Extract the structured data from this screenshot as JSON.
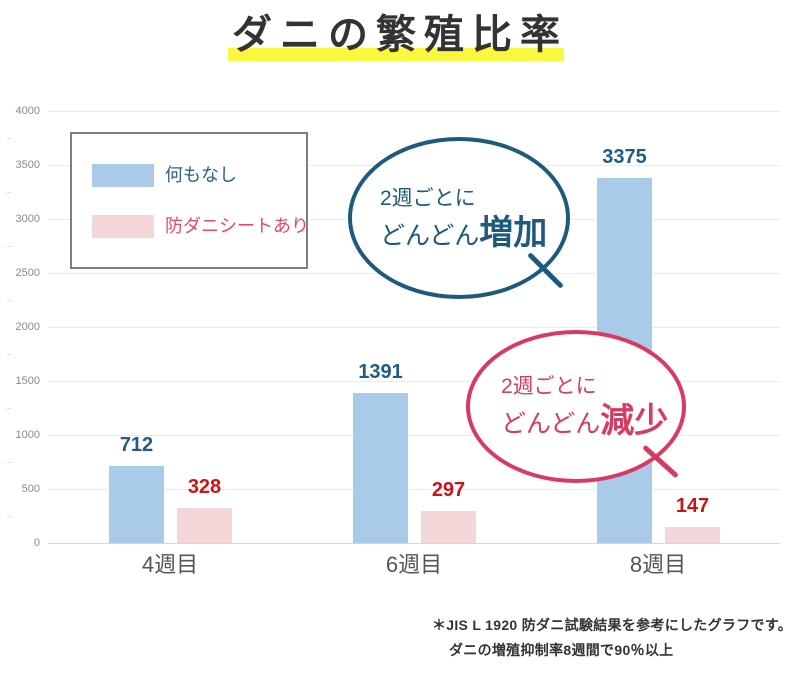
{
  "title": {
    "text": "ダニの繁殖比率",
    "highlight_color": "#f9f73e",
    "text_color": "#333333"
  },
  "chart_data": {
    "type": "bar",
    "title": "ダニの繁殖比率",
    "categories": [
      "4週目",
      "6週目",
      "8週目"
    ],
    "series": [
      {
        "name": "何もなし",
        "values": [
          712,
          1391,
          3375
        ],
        "bar_color": "#a9cbe9",
        "value_label_color": "#1f5c8c",
        "legend_text_color": "#2b6287"
      },
      {
        "name": "防ダニシートあり",
        "values": [
          328,
          297,
          147
        ],
        "bar_color": "#f2d6d8",
        "value_label_color": "#cc1414",
        "legend_text_color": "#e8466b"
      }
    ],
    "xlabel": "",
    "ylabel": "",
    "ylim": [
      0,
      4000
    ],
    "yticks": [
      0,
      500,
      1000,
      1500,
      2000,
      2500,
      3000,
      3500,
      4000
    ],
    "grid": true,
    "legend_position": "top-left"
  },
  "annotations": {
    "increase_bubble": {
      "line1": "2週ごとに",
      "line2_prefix": "どんどん",
      "line2_emphasis": "増加",
      "color": "#1d5a7d"
    },
    "decrease_bubble": {
      "line1": "2週ごとに",
      "line2_prefix": "どんどん",
      "line2_emphasis": "減少",
      "color": "#d93a62"
    }
  },
  "footnote": {
    "line1": "＊JIS L 1920 防ダニ試験結果を参考にしたグラフです。",
    "line2": "ダニの増殖抑制率8週間で90％以上"
  },
  "colors": {
    "grid": "#ebebeb",
    "axis": "#d7d7d7",
    "y_tick_label": "#8a8a8a",
    "x_tick_label": "#555555"
  }
}
